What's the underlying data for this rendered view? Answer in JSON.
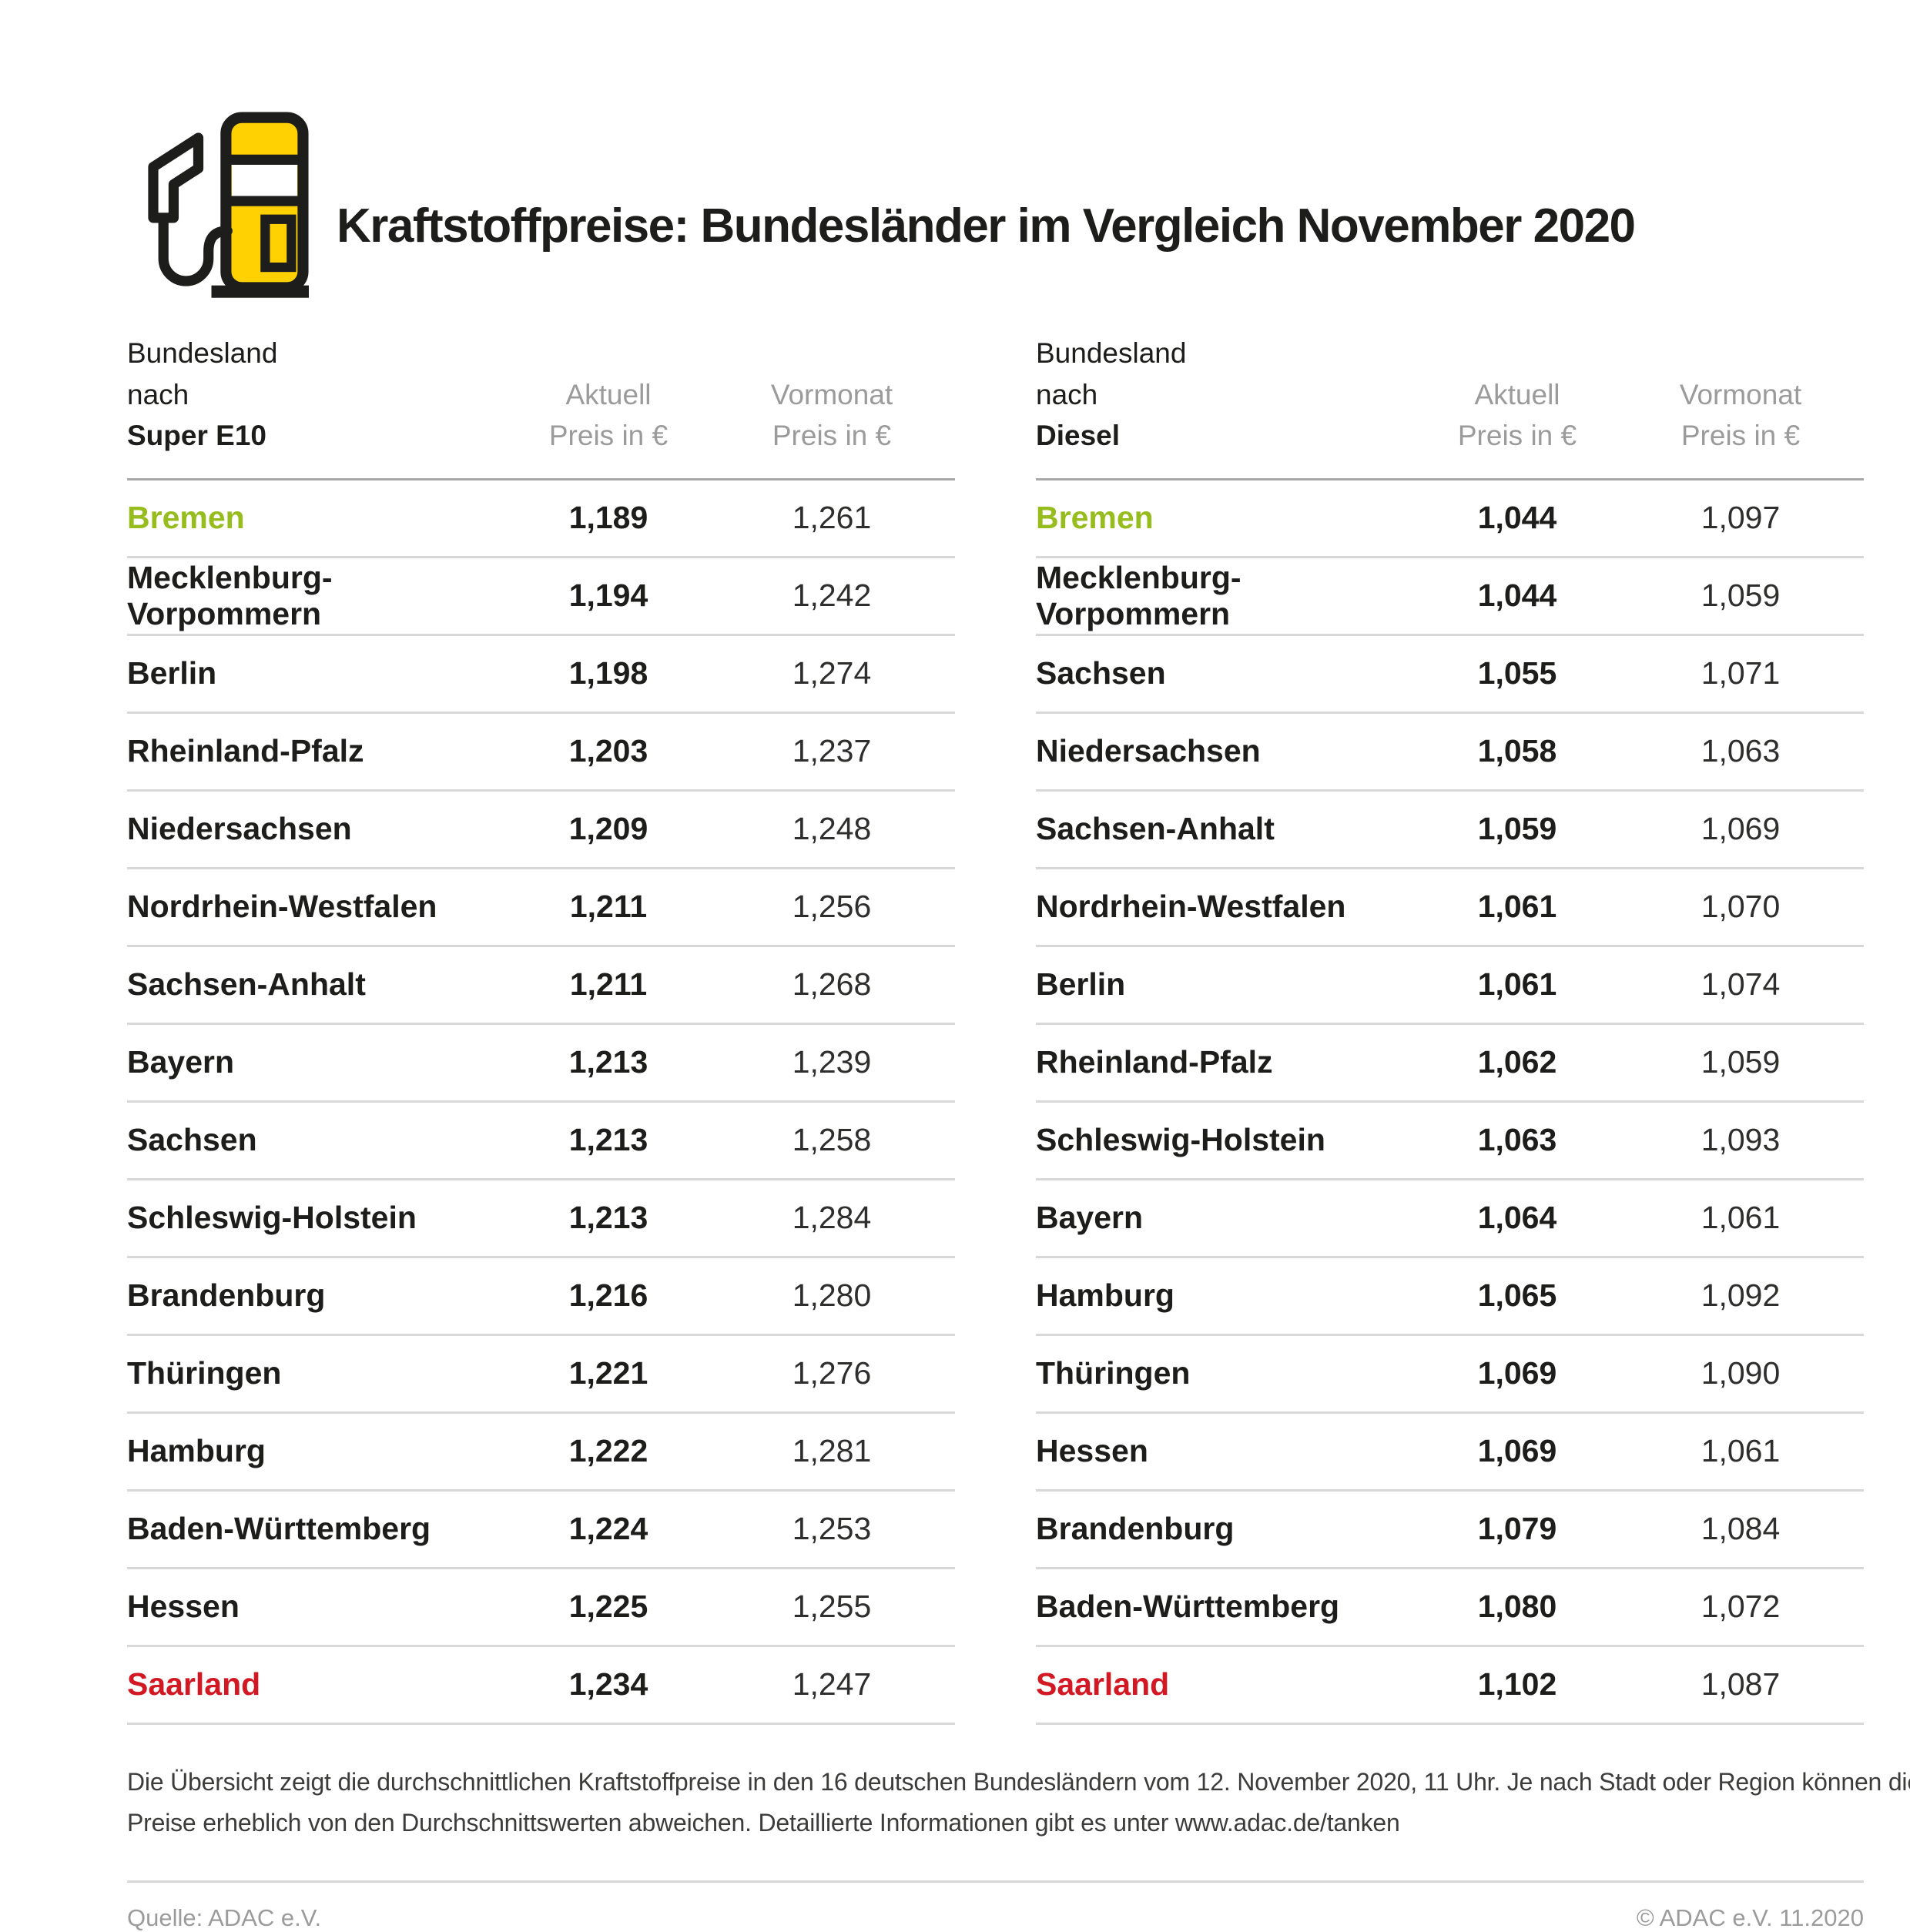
{
  "header": {
    "title": "Kraftstoffpreise: Bundesländer im Vergleich November 2020"
  },
  "icons": {
    "masthead": "fuel-pump-icon"
  },
  "colors": {
    "green": "#96bd1d",
    "red": "#d21923",
    "yellow": "#ffd103",
    "dark": "#1d1d1b",
    "header_gray": "#9b9b9b",
    "divider_gray": "#d8d8d8"
  },
  "chart_data": [
    {
      "type": "table",
      "header": {
        "col1_top": "Bundesland",
        "col1_prefix": "nach ",
        "col1_fuel": "Super E10",
        "col2_top": "Aktuell",
        "col2_bottom": "Preis in €",
        "col3_top": "Vormonat",
        "col3_bottom": "Preis in €"
      },
      "columns": [
        "Bundesland nach Super E10",
        "Aktuell Preis in €",
        "Vormonat Preis in €"
      ],
      "rows": [
        {
          "name": "Bremen",
          "aktuell": "1,189",
          "vormonat": "1,261",
          "color": "green"
        },
        {
          "name": "Mecklenburg-Vorpommern",
          "aktuell": "1,194",
          "vormonat": "1,242"
        },
        {
          "name": "Berlin",
          "aktuell": "1,198",
          "vormonat": "1,274"
        },
        {
          "name": "Rheinland-Pfalz",
          "aktuell": "1,203",
          "vormonat": "1,237"
        },
        {
          "name": "Niedersachsen",
          "aktuell": "1,209",
          "vormonat": "1,248"
        },
        {
          "name": "Nordrhein-Westfalen",
          "aktuell": "1,211",
          "vormonat": "1,256"
        },
        {
          "name": "Sachsen-Anhalt",
          "aktuell": "1,211",
          "vormonat": "1,268"
        },
        {
          "name": "Bayern",
          "aktuell": "1,213",
          "vormonat": "1,239"
        },
        {
          "name": "Sachsen",
          "aktuell": "1,213",
          "vormonat": "1,258"
        },
        {
          "name": "Schleswig-Holstein",
          "aktuell": "1,213",
          "vormonat": "1,284"
        },
        {
          "name": "Brandenburg",
          "aktuell": "1,216",
          "vormonat": "1,280"
        },
        {
          "name": "Thüringen",
          "aktuell": "1,221",
          "vormonat": "1,276"
        },
        {
          "name": "Hamburg",
          "aktuell": "1,222",
          "vormonat": "1,281"
        },
        {
          "name": "Baden-Württemberg",
          "aktuell": "1,224",
          "vormonat": "1,253"
        },
        {
          "name": "Hessen",
          "aktuell": "1,225",
          "vormonat": "1,255"
        },
        {
          "name": "Saarland",
          "aktuell": "1,234",
          "vormonat": "1,247",
          "color": "red"
        }
      ]
    },
    {
      "type": "table",
      "header": {
        "col1_top": "Bundesland",
        "col1_prefix": "nach ",
        "col1_fuel": "Diesel",
        "col2_top": "Aktuell",
        "col2_bottom": "Preis in €",
        "col3_top": "Vormonat",
        "col3_bottom": "Preis in €"
      },
      "columns": [
        "Bundesland nach Diesel",
        "Aktuell Preis in €",
        "Vormonat Preis in €"
      ],
      "rows": [
        {
          "name": "Bremen",
          "aktuell": "1,044",
          "vormonat": "1,097",
          "color": "green"
        },
        {
          "name": "Mecklenburg-Vorpommern",
          "aktuell": "1,044",
          "vormonat": "1,059"
        },
        {
          "name": "Sachsen",
          "aktuell": "1,055",
          "vormonat": "1,071"
        },
        {
          "name": "Niedersachsen",
          "aktuell": "1,058",
          "vormonat": "1,063"
        },
        {
          "name": "Sachsen-Anhalt",
          "aktuell": "1,059",
          "vormonat": "1,069"
        },
        {
          "name": "Nordrhein-Westfalen",
          "aktuell": "1,061",
          "vormonat": "1,070"
        },
        {
          "name": "Berlin",
          "aktuell": "1,061",
          "vormonat": "1,074"
        },
        {
          "name": "Rheinland-Pfalz",
          "aktuell": "1,062",
          "vormonat": "1,059"
        },
        {
          "name": "Schleswig-Holstein",
          "aktuell": "1,063",
          "vormonat": "1,093"
        },
        {
          "name": "Bayern",
          "aktuell": "1,064",
          "vormonat": "1,061"
        },
        {
          "name": "Hamburg",
          "aktuell": "1,065",
          "vormonat": "1,092"
        },
        {
          "name": "Thüringen",
          "aktuell": "1,069",
          "vormonat": "1,090"
        },
        {
          "name": "Hessen",
          "aktuell": "1,069",
          "vormonat": "1,061"
        },
        {
          "name": "Brandenburg",
          "aktuell": "1,079",
          "vormonat": "1,084"
        },
        {
          "name": "Baden-Württemberg",
          "aktuell": "1,080",
          "vormonat": "1,072"
        },
        {
          "name": "Saarland",
          "aktuell": "1,102",
          "vormonat": "1,087",
          "color": "red"
        }
      ]
    }
  ],
  "footnote": {
    "line1": "Die Übersicht zeigt die durchschnittlichen Kraftstoffpreise in den 16 deutschen Bundesländern vom 12. November 2020, 11 Uhr. Je nach Stadt oder Region können die",
    "line2": "Preise erheblich von den Durchschnittswerten abweichen. Detaillierte Informationen gibt es unter www.adac.de/tanken"
  },
  "footer": {
    "source": "Quelle: ADAC e.V.",
    "copyright": "© ADAC e.V. 11.2020"
  }
}
